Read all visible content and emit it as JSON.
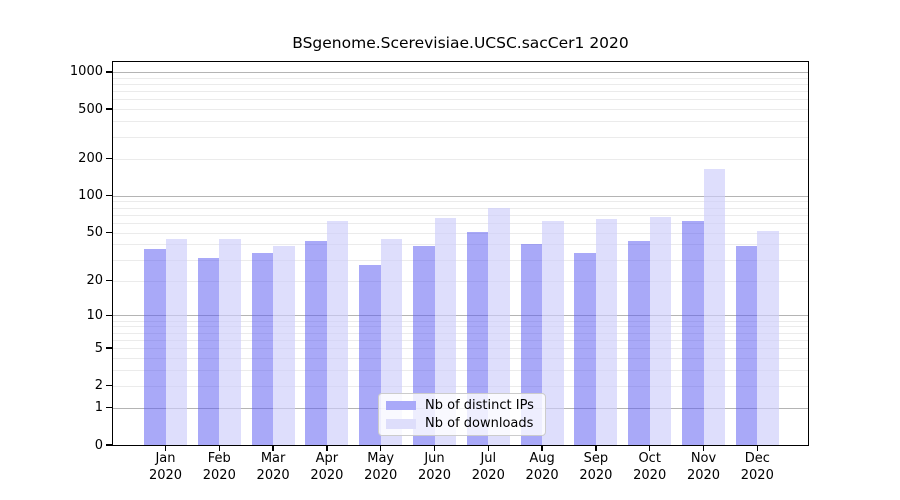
{
  "title": "BSgenome.Scerevisiae.UCSC.sacCer1 2020",
  "colors": {
    "ips_bar": "rgba(90,90,242,0.52)",
    "downloads_bar": "rgba(205,205,250,0.65)",
    "ips_swatch": "#a9a9f9",
    "downloads_swatch": "#dedefb",
    "grid_major": "#b4b4b4",
    "grid_minor": "#ebebeb",
    "axis": "#000000",
    "legend_bg": "rgba(255,255,255,0.8)",
    "legend_border": "#cccccc"
  },
  "legend": {
    "items": [
      {
        "label": "Nb of distinct IPs",
        "color_key": "ips_swatch"
      },
      {
        "label": "Nb of downloads",
        "color_key": "downloads_swatch"
      }
    ]
  },
  "y_axis": {
    "ticks": [
      0,
      1,
      2,
      5,
      10,
      20,
      50,
      100,
      200,
      500,
      1000
    ],
    "scale": "log10(value+1)"
  },
  "x_axis": {
    "month_labels": [
      "Jan",
      "Feb",
      "Mar",
      "Apr",
      "May",
      "Jun",
      "Jul",
      "Aug",
      "Sep",
      "Oct",
      "Nov",
      "Dec"
    ],
    "year": "2020"
  },
  "chart_data": {
    "type": "bar",
    "title": "BSgenome.Scerevisiae.UCSC.sacCer1 2020",
    "categories": [
      "Jan 2020",
      "Feb 2020",
      "Mar 2020",
      "Apr 2020",
      "May 2020",
      "Jun 2020",
      "Jul 2020",
      "Aug 2020",
      "Sep 2020",
      "Oct 2020",
      "Nov 2020",
      "Dec 2020"
    ],
    "series": [
      {
        "name": "Nb of distinct IPs",
        "values": [
          37,
          31,
          34,
          43,
          27,
          39,
          51,
          40,
          34,
          43,
          62,
          39
        ]
      },
      {
        "name": "Nb of downloads",
        "values": [
          44,
          44,
          39,
          62,
          44,
          66,
          80,
          62,
          65,
          67,
          164,
          52
        ]
      }
    ],
    "xlabel": "",
    "ylabel": "",
    "y_ticks": [
      0,
      1,
      2,
      5,
      10,
      20,
      50,
      100,
      200,
      500,
      1000
    ],
    "y_scale": "log10(v+1)",
    "ylim": [
      0,
      1200
    ],
    "grid": true,
    "legend_position": "lower center"
  }
}
